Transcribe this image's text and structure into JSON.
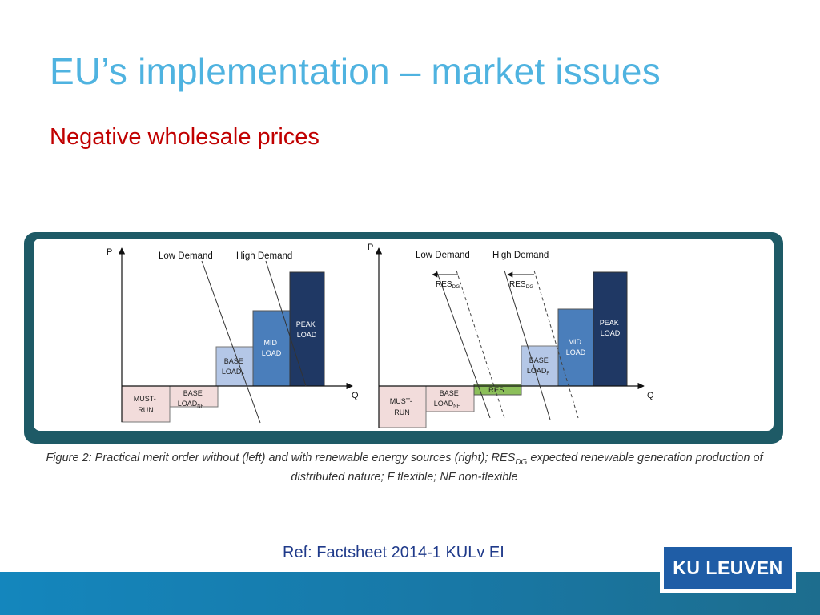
{
  "slide": {
    "title": "EU’s implementation – market issues",
    "subtitle": "Negative wholesale prices",
    "reference": "Ref: Factsheet 2014-1 KULv EI",
    "logo_text": "KU LEUVEN"
  },
  "figure": {
    "left": {
      "p_label": "P",
      "q_label": "Q",
      "low_demand": "Low Demand",
      "high_demand": "High Demand",
      "blocks": {
        "must_run": [
          "MUST-",
          "RUN"
        ],
        "base_nf": [
          "BASE",
          "LOAD",
          "NF"
        ],
        "base_f": [
          "BASE",
          "LOAD",
          "F"
        ],
        "mid": [
          "MID",
          "LOAD"
        ],
        "peak": [
          "PEAK",
          "LOAD"
        ]
      }
    },
    "right": {
      "p_label": "P",
      "q_label": "Q",
      "low_demand": "Low Demand",
      "high_demand": "High Demand",
      "res_dg": "RES",
      "res_dg_sub": "DG",
      "res_block": "RES",
      "blocks": {
        "must_run": [
          "MUST-",
          "RUN"
        ],
        "base_nf": [
          "BASE",
          "LOAD",
          "NF"
        ],
        "base_f": [
          "BASE",
          "LOAD",
          "F"
        ],
        "mid": [
          "MID",
          "LOAD"
        ],
        "peak": [
          "PEAK",
          "LOAD"
        ]
      }
    },
    "colors": {
      "must_run": "#f2dcdb",
      "base_nf": "#f2dcdb",
      "base_f": "#b4c7e7",
      "mid": "#4a7ebb",
      "peak": "#1f3864",
      "res": "#8cbf5a",
      "frame": "#1e5a66"
    }
  },
  "caption": {
    "part1": "Figure 2: Practical merit order without (left) and with renewable energy sources (right); RES",
    "sub": "DG",
    "part2": " expected renewable generation production of",
    "line2": "distributed nature; F flexible; NF non-flexible"
  }
}
